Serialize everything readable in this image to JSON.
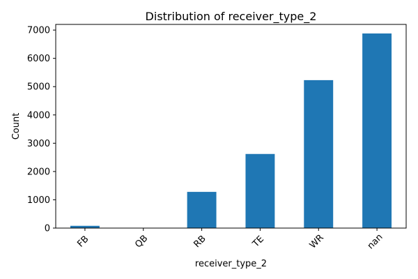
{
  "chart_data": {
    "type": "bar",
    "title": "Distribution of receiver_type_2",
    "xlabel": "receiver_type_2",
    "ylabel": "Count",
    "categories": [
      "FB",
      "QB",
      "RB",
      "TE",
      "WR",
      "nan"
    ],
    "values": [
      80,
      8,
      1280,
      2620,
      5230,
      6880
    ],
    "ylim": [
      0,
      7200
    ],
    "yticks": [
      0,
      1000,
      2000,
      3000,
      4000,
      5000,
      6000,
      7000
    ],
    "bar_color": "#1f77b4",
    "grid": false,
    "legend": "none"
  }
}
